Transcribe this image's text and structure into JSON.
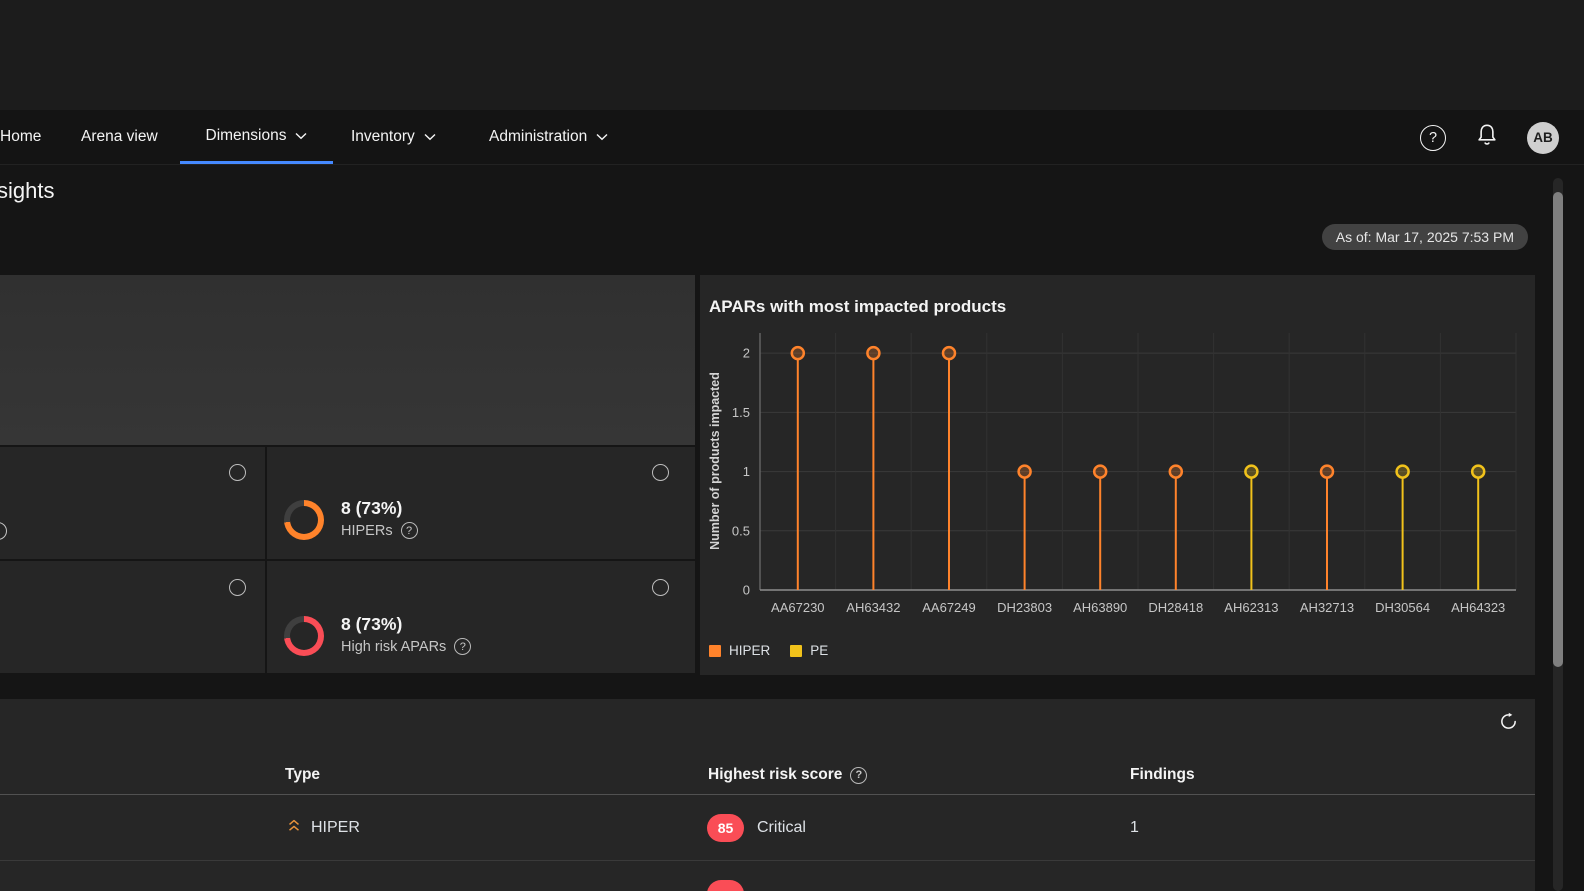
{
  "icons": {
    "help": "?"
  },
  "nav": {
    "items": [
      {
        "label": "Home"
      },
      {
        "label": "Arena view"
      },
      {
        "label": "Dimensions"
      },
      {
        "label": "Inventory"
      },
      {
        "label": "Administration"
      }
    ],
    "active_item": "Dimensions",
    "accent_color": "#4589ff",
    "avatar_initials": "AB"
  },
  "page": {
    "title_partial": "sights",
    "as_of_badge": "As of: Mar 17, 2025 7:53 PM"
  },
  "metric_tiles": [
    {
      "value": "8 (73%)",
      "label": "HIPERs",
      "donut_color": "#ff832b",
      "donut_percent": 73
    },
    {
      "value": "8 (73%)",
      "label": "High risk APARs",
      "donut_color": "#fa4d56",
      "donut_percent": 73
    }
  ],
  "chart_data": {
    "type": "lollipop",
    "title": "APARs with most impacted products",
    "ylabel": "Number of products impacted",
    "xlabel": "",
    "categories": [
      "AA67230",
      "AH63432",
      "AA67249",
      "DH23803",
      "AH63890",
      "DH28418",
      "AH62313",
      "AH32713",
      "DH30564",
      "AH64323"
    ],
    "values": [
      2,
      2,
      2,
      1,
      1,
      1,
      1,
      1,
      1,
      1
    ],
    "point_series": [
      "HIPER",
      "HIPER",
      "HIPER",
      "HIPER",
      "HIPER",
      "HIPER",
      "PE",
      "HIPER",
      "PE",
      "PE"
    ],
    "yticks": [
      0,
      0.5,
      1,
      1.5,
      2
    ],
    "ylim": [
      0,
      2.17
    ],
    "grid": true,
    "legend_position": "bottom-left",
    "series_colors": {
      "HIPER": "#ff832b",
      "PE": "#f1c21b"
    },
    "legend": [
      {
        "name": "HIPER",
        "color": "#ff832b"
      },
      {
        "name": "PE",
        "color": "#f1c21b"
      }
    ]
  },
  "findings_table": {
    "headers": [
      "Type",
      "Highest risk score",
      "Findings"
    ],
    "score_badge_color": "#fa4d56",
    "rows": [
      {
        "type": "HIPER",
        "score": "85",
        "severity": "Critical",
        "findings": "1"
      }
    ],
    "partial_next_row": {
      "badge_color": "#fa4d56"
    }
  }
}
